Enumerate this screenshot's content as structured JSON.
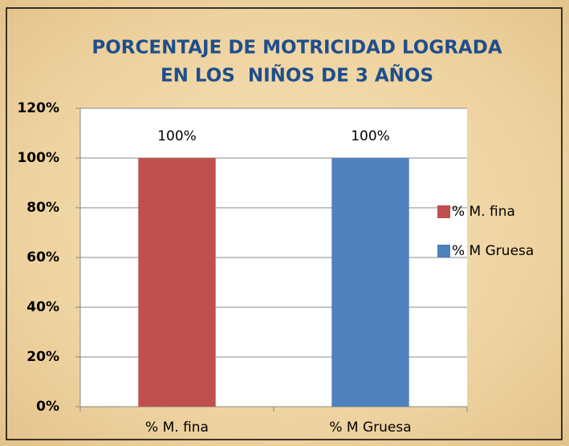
{
  "chart_data": {
    "type": "bar",
    "title": [
      "PORCENTAJE DE MOTRICIDAD LOGRADA",
      "EN LOS  NIÑOS DE 3 AÑOS"
    ],
    "categories": [
      "% M. fina",
      "% M Gruesa"
    ],
    "values": [
      100,
      100
    ],
    "value_labels": [
      "100%",
      "100%"
    ],
    "colors": [
      "#c0504d",
      "#4f81bd"
    ],
    "ylim": [
      0,
      120
    ],
    "yticks": [
      {
        "value": 0,
        "label": "0%"
      },
      {
        "value": 20,
        "label": "20%"
      },
      {
        "value": 40,
        "label": "40%"
      },
      {
        "value": 60,
        "label": "60%"
      },
      {
        "value": 80,
        "label": "80%"
      },
      {
        "value": 100,
        "label": "100%"
      },
      {
        "value": 120,
        "label": "120%"
      }
    ],
    "grid": true,
    "legend": "right"
  }
}
